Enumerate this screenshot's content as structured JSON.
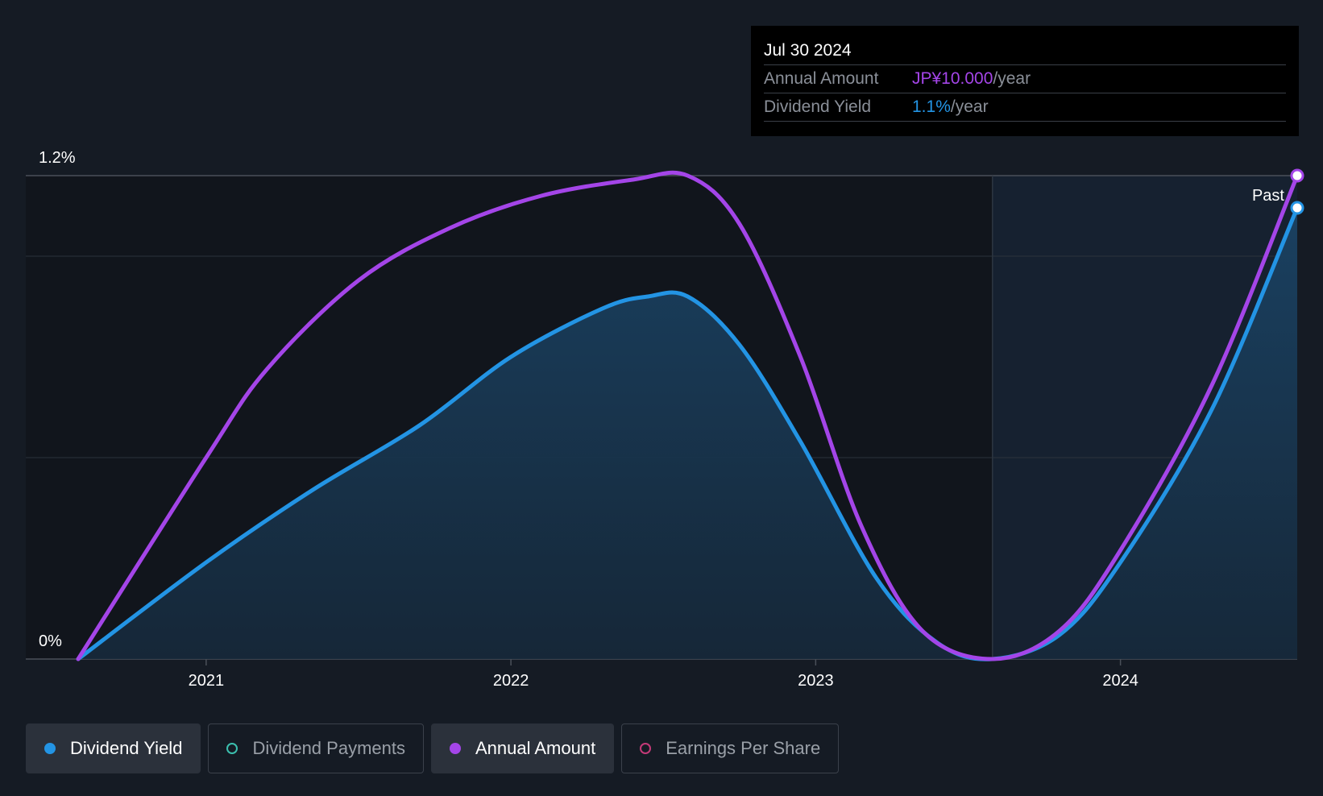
{
  "chart_data": {
    "type": "area",
    "x_start": 2020.58,
    "x_end": 2024.58,
    "x_ticks": [
      "2021",
      "2022",
      "2023",
      "2024"
    ],
    "x_tick_values": [
      2021,
      2022,
      2023,
      2024
    ],
    "y_labels": {
      "max": "1.2%",
      "min": "0%"
    },
    "ylim": [
      0,
      1.2
    ],
    "past_label": "Past",
    "past_start": 2023.58,
    "series": [
      {
        "name": "Dividend Yield",
        "color": "#2394e4",
        "filled": true,
        "points": [
          [
            2020.58,
            0
          ],
          [
            2021.0,
            0.24
          ],
          [
            2021.35,
            0.42
          ],
          [
            2021.7,
            0.58
          ],
          [
            2022.0,
            0.75
          ],
          [
            2022.3,
            0.87
          ],
          [
            2022.45,
            0.9
          ],
          [
            2022.58,
            0.9
          ],
          [
            2022.75,
            0.78
          ],
          [
            2022.95,
            0.54
          ],
          [
            2023.2,
            0.2
          ],
          [
            2023.4,
            0.04
          ],
          [
            2023.58,
            0
          ],
          [
            2023.8,
            0.06
          ],
          [
            2024.0,
            0.24
          ],
          [
            2024.3,
            0.62
          ],
          [
            2024.58,
            1.12
          ]
        ]
      },
      {
        "name": "Annual Amount",
        "color": "#a445e8",
        "filled": false,
        "points": [
          [
            2020.58,
            0
          ],
          [
            2021.0,
            0.5
          ],
          [
            2021.2,
            0.72
          ],
          [
            2021.5,
            0.94
          ],
          [
            2021.8,
            1.07
          ],
          [
            2022.1,
            1.15
          ],
          [
            2022.4,
            1.19
          ],
          [
            2022.58,
            1.2
          ],
          [
            2022.75,
            1.08
          ],
          [
            2022.95,
            0.75
          ],
          [
            2023.15,
            0.33
          ],
          [
            2023.35,
            0.07
          ],
          [
            2023.58,
            0
          ],
          [
            2023.8,
            0.07
          ],
          [
            2024.0,
            0.27
          ],
          [
            2024.3,
            0.68
          ],
          [
            2024.58,
            1.2
          ]
        ]
      }
    ]
  },
  "tooltip": {
    "date": "Jul 30 2024",
    "rows": [
      {
        "label": "Annual Amount",
        "value": "JP¥10.000",
        "unit": "/year",
        "color": "#a445e8"
      },
      {
        "label": "Dividend Yield",
        "value": "1.1%",
        "unit": "/year",
        "color": "#2394e4"
      }
    ]
  },
  "legend": [
    {
      "label": "Dividend Yield",
      "active": true,
      "color": "#2394e4"
    },
    {
      "label": "Dividend Payments",
      "active": false,
      "color": "#3bbfae"
    },
    {
      "label": "Annual Amount",
      "active": true,
      "color": "#a445e8"
    },
    {
      "label": "Earnings Per Share",
      "active": false,
      "color": "#c43a78"
    }
  ]
}
